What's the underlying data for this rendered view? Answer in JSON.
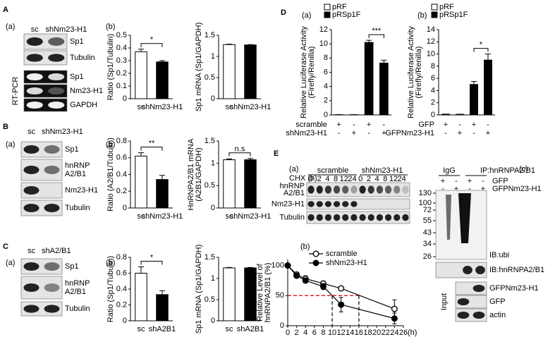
{
  "panels": {
    "A": {
      "letter": "A",
      "sub_a": "(a)",
      "sub_b": "(b)",
      "lanes": [
        "sc",
        "shNm23-H1"
      ],
      "rows": [
        [
          "Sp1"
        ],
        [
          "Tubulin"
        ],
        [
          "Sp1"
        ],
        [
          "Nm23-H1"
        ],
        [
          "GAPDH"
        ]
      ],
      "side": "RT-PCR"
    },
    "B": {
      "letter": "B",
      "sub_a": "(a)",
      "sub_b": "(b)",
      "lanes": [
        "sc",
        "shNm23-H1"
      ],
      "rows": [
        [
          "Sp1"
        ],
        [
          "hnRNP",
          "A2/B1"
        ],
        [
          "Nm23-H1"
        ],
        [
          "Tubulin"
        ]
      ]
    },
    "C": {
      "letter": "C",
      "sub_a": "(a)",
      "sub_b": "(b)",
      "lanes": [
        "sc",
        "shA2/B1"
      ],
      "rows": [
        [
          "Sp1"
        ],
        [
          "hnRNP",
          "A2/B1"
        ],
        [
          "Tubulin"
        ]
      ]
    },
    "D": {
      "letter": "D",
      "sub_a": "(a)",
      "sub_b": "(b)"
    },
    "E": {
      "letter": "E",
      "sub_a": "(a)",
      "sub_b": "(b)",
      "sub_c": "(c)",
      "chx": "CHX (h)",
      "groups": [
        "scramble",
        "shNm23-H1"
      ],
      "times": [
        "0",
        "2",
        "4",
        "8",
        "12",
        "24",
        "0",
        "2",
        "4",
        "8",
        "12",
        "24"
      ],
      "rows": [
        [
          "hnRNP",
          "A2/B1"
        ],
        [
          "Nm23-H1"
        ],
        [
          "Tubulin"
        ]
      ],
      "ip": {
        "groups": [
          "IgG",
          "IP:hnRNPA2/B1"
        ],
        "sign_rows": [
          {
            "name": "GFP",
            "signs": [
              "+",
              "-",
              "+",
              "-"
            ]
          },
          {
            "name": "GFPNm23-H1",
            "signs": [
              "-",
              "+",
              "-",
              "+"
            ]
          }
        ],
        "mw": [
          "130",
          "100",
          "72",
          "55",
          "43",
          "34",
          "26"
        ],
        "blot_labels": [
          "IB:ubi",
          "IB:hnRNPA2/B1"
        ],
        "input": "Input",
        "input_rows": [
          "GFPNm23-H1",
          "GFP",
          "actin"
        ]
      }
    }
  },
  "chart_data": [
    {
      "type": "bar",
      "ylabel": [
        "Ratio (Sp1/Tubulin)"
      ],
      "categories": [
        "sc",
        "shNm23-H1"
      ],
      "values": [
        0.37,
        0.29
      ],
      "errors": [
        0.02,
        0.01
      ],
      "colors": [
        "#ffffff",
        "#000000"
      ],
      "ylim": [
        0,
        0.5
      ],
      "yticks": [
        0,
        0.1,
        0.2,
        0.3,
        0.4,
        0.5
      ],
      "significance": "*"
    },
    {
      "type": "bar",
      "ylabel": [
        "Sp1 mRNA (Sp1/GAPDH)"
      ],
      "categories": [
        "sc",
        "shNm23-H1"
      ],
      "values": [
        1.28,
        1.27
      ],
      "errors": [
        0.01,
        0.01
      ],
      "colors": [
        "#ffffff",
        "#000000"
      ],
      "ylim": [
        0,
        1.5
      ],
      "yticks": [
        0,
        0.5,
        1,
        1.5
      ]
    },
    {
      "type": "bar",
      "ylabel": [
        "Ratio (A2/B1/Tubulin)"
      ],
      "categories": [
        "sc",
        "shNm23-H1"
      ],
      "values": [
        0.62,
        0.34
      ],
      "errors": [
        0.04,
        0.05
      ],
      "colors": [
        "#ffffff",
        "#000000"
      ],
      "ylim": [
        0,
        0.8
      ],
      "yticks": [
        0,
        0.2,
        0.4,
        0.6,
        0.8
      ],
      "significance": "**"
    },
    {
      "type": "bar",
      "ylabel": [
        "HnRNPA2/B1 mRNA",
        "(A2B1/GAPDH)"
      ],
      "categories": [
        "sc",
        "shNm23-H1"
      ],
      "values": [
        1.08,
        1.08
      ],
      "errors": [
        0.02,
        0.03
      ],
      "colors": [
        "#ffffff",
        "#000000"
      ],
      "ylim": [
        0,
        1.5
      ],
      "yticks": [
        0,
        0.5,
        1,
        1.5
      ],
      "significance": "n.s"
    },
    {
      "type": "bar",
      "ylabel": [
        "Ratio (Sp1/Tubulin)"
      ],
      "categories": [
        "sc",
        "shA2B1"
      ],
      "values": [
        0.6,
        0.33
      ],
      "errors": [
        0.08,
        0.05
      ],
      "colors": [
        "#ffffff",
        "#000000"
      ],
      "ylim": [
        0,
        0.8
      ],
      "yticks": [
        0,
        0.2,
        0.4,
        0.6,
        0.8
      ],
      "significance": "*"
    },
    {
      "type": "bar",
      "ylabel": [
        "Sp1 mRNA (Sp1/GAPDH)"
      ],
      "categories": [
        "sc",
        "shA2B1"
      ],
      "values": [
        1.25,
        1.25
      ],
      "errors": [
        0.01,
        0.01
      ],
      "colors": [
        "#ffffff",
        "#000000"
      ],
      "ylim": [
        0,
        1.5
      ],
      "yticks": [
        0,
        0.5,
        1,
        1.5
      ]
    },
    {
      "type": "bar",
      "ylabel": [
        "Relative Luciferase Activity",
        "(Firefly/Renilla)"
      ],
      "series": [
        {
          "name": "pRF",
          "color": "#ffffff",
          "values": [
            0.03,
            0.03,
            null,
            null
          ],
          "errors": [
            0.01,
            0.01,
            null,
            null
          ]
        },
        {
          "name": "pRSp1F",
          "color": "#000000",
          "values": [
            null,
            null,
            10.2,
            7.3
          ],
          "errors": [
            null,
            null,
            0.3,
            0.4
          ]
        }
      ],
      "sign_rows": [
        {
          "name": "scramble",
          "signs": [
            "+",
            "-",
            "+",
            "-"
          ]
        },
        {
          "name": "shNm23-H1",
          "signs": [
            "-",
            "+",
            "-",
            "+"
          ]
        }
      ],
      "ylim": [
        0,
        12
      ],
      "yticks": [
        0,
        2,
        4,
        6,
        8,
        10,
        12
      ],
      "significance": "***"
    },
    {
      "type": "bar",
      "ylabel": [
        "Relative Luciferase Activity",
        "(Firefly/Renilla)"
      ],
      "series": [
        {
          "name": "pRF",
          "color": "#ffffff",
          "values": [
            0.12,
            0.1,
            null,
            null
          ],
          "errors": [
            0.01,
            0.01,
            null,
            null
          ]
        },
        {
          "name": "pRSp1F",
          "color": "#000000",
          "values": [
            null,
            null,
            5,
            9
          ],
          "errors": [
            null,
            null,
            0.5,
            1
          ]
        }
      ],
      "sign_rows": [
        {
          "name": "GFP",
          "signs": [
            "+",
            "-",
            "+",
            "-"
          ]
        },
        {
          "name": "GFPNm23-H1",
          "signs": [
            "-",
            "+",
            "-",
            "+"
          ]
        }
      ],
      "ylim": [
        0,
        14
      ],
      "yticks": [
        0,
        2,
        4,
        6,
        8,
        10,
        12,
        14
      ],
      "significance": "*"
    },
    {
      "type": "line",
      "ylabel": [
        "Relative Level of",
        "hnRNPA2/B1 (%)"
      ],
      "x": [
        0,
        2,
        4,
        8,
        12,
        24
      ],
      "xlim": [
        0,
        26
      ],
      "xticks": [
        0,
        2,
        4,
        6,
        8,
        10,
        12,
        14,
        16,
        18,
        20,
        22,
        24,
        26
      ],
      "x_unit": "(h)",
      "ylim": [
        0,
        110
      ],
      "yticks": [
        0,
        50,
        100
      ],
      "series": [
        {
          "name": "scramble",
          "marker": "open",
          "color": "#000000",
          "values": [
            100,
            85,
            78,
            70,
            62,
            28
          ],
          "errors": [
            0,
            4,
            5,
            4,
            3,
            15
          ]
        },
        {
          "name": "shNm23-H1",
          "marker": "filled",
          "color": "#000000",
          "values": [
            100,
            83,
            75,
            65,
            35,
            12
          ],
          "errors": [
            0,
            3,
            4,
            5,
            12,
            9
          ]
        }
      ],
      "ref_y": 50,
      "ref_x": [
        10,
        16
      ],
      "ref_color": "#e02020"
    }
  ]
}
